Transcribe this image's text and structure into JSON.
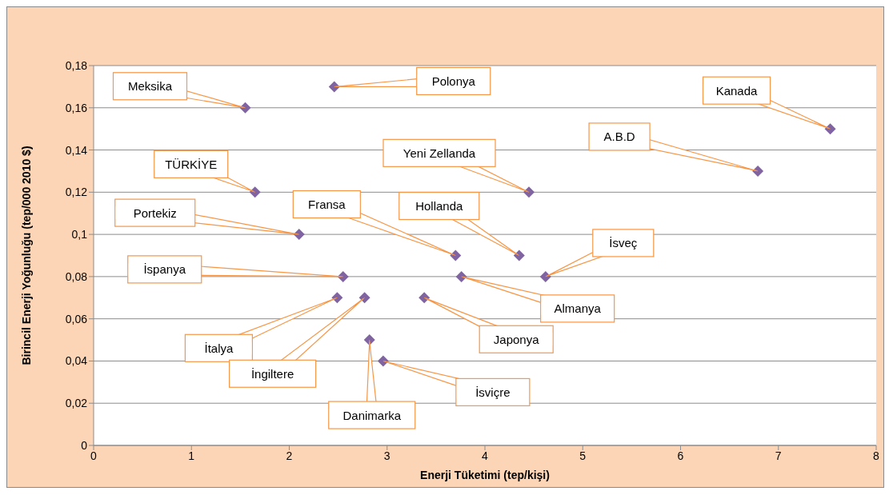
{
  "chart_data": {
    "type": "scatter",
    "xlabel": "Enerji Tüketimi (tep/kişi)",
    "ylabel": "Birincil Enerji Yoğunluğu (tep/000 2010 $)",
    "x": [
      1.55,
      2.46,
      1.65,
      2.1,
      2.55,
      2.49,
      2.77,
      2.82,
      2.96,
      3.38,
      3.76,
      3.7,
      4.35,
      4.45,
      4.62,
      6.79,
      7.53
    ],
    "series": [
      {
        "color": "#8064a2",
        "values": [
          0.16,
          0.17,
          0.12,
          0.1,
          0.08,
          0.07,
          0.07,
          0.05,
          0.04,
          0.07,
          0.08,
          0.09,
          0.09,
          0.12,
          0.08,
          0.13,
          0.15
        ]
      }
    ],
    "annotations": [
      {
        "text": "Meksika",
        "x": 1.55,
        "y": 0.16
      },
      {
        "text": "Polonya",
        "x": 2.46,
        "y": 0.17
      },
      {
        "text": "TÜRKİYE",
        "x": 1.65,
        "y": 0.12
      },
      {
        "text": "Portekiz",
        "x": 2.1,
        "y": 0.1
      },
      {
        "text": "İspanya",
        "x": 2.55,
        "y": 0.08
      },
      {
        "text": "İtalya",
        "x": 2.49,
        "y": 0.07
      },
      {
        "text": "İngiltere",
        "x": 2.77,
        "y": 0.07
      },
      {
        "text": "Danimarka",
        "x": 2.82,
        "y": 0.05
      },
      {
        "text": "İsviçre",
        "x": 2.96,
        "y": 0.04
      },
      {
        "text": "Japonya",
        "x": 3.38,
        "y": 0.07
      },
      {
        "text": "Almanya",
        "x": 3.76,
        "y": 0.08
      },
      {
        "text": "Fransa",
        "x": 3.7,
        "y": 0.09
      },
      {
        "text": "Hollanda",
        "x": 4.35,
        "y": 0.09
      },
      {
        "text": "Yeni Zellanda",
        "x": 4.45,
        "y": 0.12
      },
      {
        "text": "İsveç",
        "x": 4.62,
        "y": 0.08
      },
      {
        "text": "A.B.D",
        "x": 6.79,
        "y": 0.13
      },
      {
        "text": "Kanada",
        "x": 7.53,
        "y": 0.15
      }
    ],
    "xlim": [
      0,
      8
    ],
    "xticks": [
      0,
      1,
      2,
      3,
      4,
      5,
      6,
      7,
      8
    ],
    "ylim": [
      0,
      0.18
    ],
    "yticks": [
      {
        "value": 0,
        "label": "0"
      },
      {
        "value": 0.02,
        "label": "0,02"
      },
      {
        "value": 0.04,
        "label": "0,04"
      },
      {
        "value": 0.06,
        "label": "0,06"
      },
      {
        "value": 0.08,
        "label": "0,08"
      },
      {
        "value": 0.1,
        "label": "0,1"
      },
      {
        "value": 0.12,
        "label": "0,12"
      },
      {
        "value": 0.14,
        "label": "0,14"
      },
      {
        "value": 0.16,
        "label": "0,16"
      },
      {
        "value": 0.18,
        "label": "0,18"
      }
    ],
    "grid": "y",
    "marker": "diamond"
  }
}
